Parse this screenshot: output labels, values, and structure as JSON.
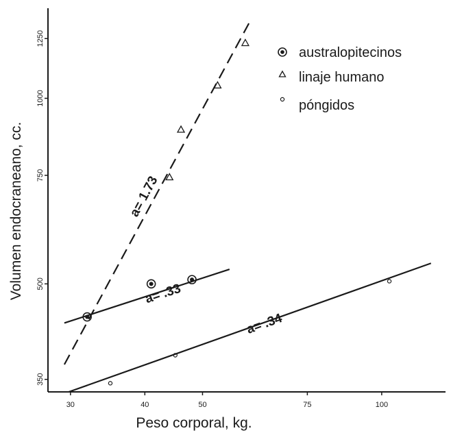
{
  "chart_data": {
    "type": "scatter",
    "title": "",
    "xlabel": "Peso corporal, kg.",
    "ylabel": "Volumen endocraneano, cc.",
    "x_scale": "log",
    "y_scale": "log",
    "x_ticks": [
      30,
      40,
      50,
      75,
      100
    ],
    "x_tick_labels": [
      "30",
      "40",
      "50",
      "75",
      "100"
    ],
    "y_ticks": [
      350,
      500,
      750,
      1000,
      1250
    ],
    "y_tick_labels": [
      "350",
      "500",
      "750",
      "1000",
      "1250"
    ],
    "xlim": [
      27.5,
      128
    ],
    "ylim": [
      334,
      1400
    ],
    "legend_position": "top-right",
    "series": [
      {
        "name": "australopitecinos",
        "marker": "circle-dot",
        "points": [
          [
            32,
            442
          ],
          [
            41,
            500
          ],
          [
            48,
            508
          ]
        ]
      },
      {
        "name": "linaje humano",
        "marker": "triangle",
        "points": [
          [
            44,
            745
          ],
          [
            53,
            1050
          ],
          [
            59,
            1230
          ],
          [
            46,
            890
          ]
        ]
      },
      {
        "name": "póngidos",
        "marker": "small-circle",
        "points": [
          [
            35,
            345
          ],
          [
            45,
            383
          ],
          [
            103,
            505
          ]
        ]
      }
    ],
    "fit_lines": [
      {
        "label": "a= 1.73",
        "style": "dashed",
        "from": [
          29.3,
          370
        ],
        "to": [
          60,
          1330
        ]
      },
      {
        "label": "a= .33",
        "style": "solid",
        "from": [
          29.3,
          432
        ],
        "to": [
          55.5,
          528
        ]
      },
      {
        "label": "a= .34",
        "style": "solid",
        "from": [
          29.8,
          334
        ],
        "to": [
          121,
          540
        ]
      }
    ]
  }
}
